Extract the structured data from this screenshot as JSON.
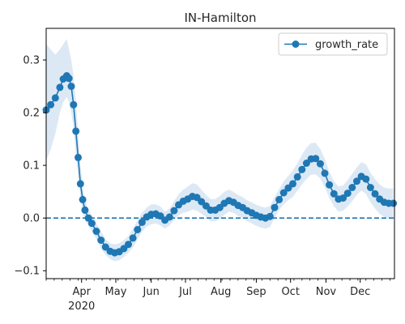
{
  "chart_data": {
    "type": "line",
    "title": "IN-Hamilton",
    "xlabel": "",
    "ylabel": "",
    "x_range": [
      "2020-03-01",
      "2020-12-31"
    ],
    "ylim": [
      -0.115,
      0.36
    ],
    "y_ticks": [
      -0.1,
      0.0,
      0.1,
      0.2,
      0.3
    ],
    "y_tick_labels": [
      "−0.1",
      "0.0",
      "0.1",
      "0.2",
      "0.3"
    ],
    "x_ticks": [
      {
        "date": "2020-04-01",
        "label": "Apr",
        "sublabel": "2020"
      },
      {
        "date": "2020-05-01",
        "label": "May"
      },
      {
        "date": "2020-06-01",
        "label": "Jun"
      },
      {
        "date": "2020-07-01",
        "label": "Jul"
      },
      {
        "date": "2020-08-01",
        "label": "Aug"
      },
      {
        "date": "2020-09-01",
        "label": "Sep"
      },
      {
        "date": "2020-10-01",
        "label": "Oct"
      },
      {
        "date": "2020-11-01",
        "label": "Nov"
      },
      {
        "date": "2020-12-01",
        "label": "Dec"
      }
    ],
    "reference_line": {
      "y": 0.0,
      "style": "dashed",
      "color": "#1f77b4"
    },
    "legend": {
      "position": "top-right",
      "entries": [
        "growth_rate"
      ]
    },
    "grid": false,
    "series": [
      {
        "name": "growth_rate",
        "color": "#1f77b4",
        "band_color": "#dce9f5",
        "points": [
          [
            "2020-03-01",
            0.205,
            0.11,
            0.33
          ],
          [
            "2020-03-05",
            0.215,
            0.13,
            0.32
          ],
          [
            "2020-03-09",
            0.228,
            0.16,
            0.31
          ],
          [
            "2020-03-13",
            0.248,
            0.2,
            0.32
          ],
          [
            "2020-03-16",
            0.264,
            0.22,
            0.33
          ],
          [
            "2020-03-19",
            0.27,
            0.23,
            0.34
          ],
          [
            "2020-03-21",
            0.265,
            0.22,
            0.32
          ],
          [
            "2020-03-23",
            0.25,
            0.2,
            0.3
          ],
          [
            "2020-03-25",
            0.215,
            0.17,
            0.27
          ],
          [
            "2020-03-27",
            0.165,
            0.12,
            0.22
          ],
          [
            "2020-03-29",
            0.115,
            0.08,
            0.16
          ],
          [
            "2020-03-31",
            0.065,
            0.04,
            0.1
          ],
          [
            "2020-04-02",
            0.035,
            0.01,
            0.06
          ],
          [
            "2020-04-04",
            0.015,
            -0.005,
            0.035
          ],
          [
            "2020-04-07",
            0.0,
            -0.015,
            0.015
          ],
          [
            "2020-04-10",
            -0.01,
            -0.025,
            0.005
          ],
          [
            "2020-04-14",
            -0.025,
            -0.04,
            -0.01
          ],
          [
            "2020-04-18",
            -0.042,
            -0.058,
            -0.026
          ],
          [
            "2020-04-22",
            -0.055,
            -0.07,
            -0.04
          ],
          [
            "2020-04-26",
            -0.063,
            -0.078,
            -0.048
          ],
          [
            "2020-04-30",
            -0.066,
            -0.082,
            -0.05
          ],
          [
            "2020-05-04",
            -0.064,
            -0.08,
            -0.048
          ],
          [
            "2020-05-08",
            -0.058,
            -0.074,
            -0.042
          ],
          [
            "2020-05-12",
            -0.05,
            -0.066,
            -0.034
          ],
          [
            "2020-05-16",
            -0.038,
            -0.056,
            -0.02
          ],
          [
            "2020-05-20",
            -0.022,
            -0.04,
            -0.004
          ],
          [
            "2020-05-24",
            -0.008,
            -0.026,
            0.01
          ],
          [
            "2020-05-28",
            0.002,
            -0.016,
            0.02
          ],
          [
            "2020-06-01",
            0.007,
            -0.012,
            0.026
          ],
          [
            "2020-06-05",
            0.008,
            -0.01,
            0.026
          ],
          [
            "2020-06-09",
            0.004,
            -0.014,
            0.022
          ],
          [
            "2020-06-13",
            -0.004,
            -0.02,
            0.012
          ],
          [
            "2020-06-17",
            0.002,
            -0.014,
            0.018
          ],
          [
            "2020-06-21",
            0.014,
            -0.004,
            0.032
          ],
          [
            "2020-06-25",
            0.025,
            0.005,
            0.045
          ],
          [
            "2020-06-29",
            0.032,
            0.01,
            0.054
          ],
          [
            "2020-07-03",
            0.036,
            0.012,
            0.06
          ],
          [
            "2020-07-07",
            0.041,
            0.016,
            0.066
          ],
          [
            "2020-07-11",
            0.039,
            0.014,
            0.064
          ],
          [
            "2020-07-15",
            0.031,
            0.008,
            0.054
          ],
          [
            "2020-07-19",
            0.023,
            0.002,
            0.044
          ],
          [
            "2020-07-23",
            0.015,
            -0.006,
            0.036
          ],
          [
            "2020-07-27",
            0.015,
            -0.006,
            0.036
          ],
          [
            "2020-07-31",
            0.02,
            -0.002,
            0.042
          ],
          [
            "2020-08-04",
            0.028,
            0.006,
            0.05
          ],
          [
            "2020-08-08",
            0.033,
            0.012,
            0.054
          ],
          [
            "2020-08-12",
            0.03,
            0.01,
            0.05
          ],
          [
            "2020-08-16",
            0.024,
            0.004,
            0.044
          ],
          [
            "2020-08-20",
            0.02,
            0.0,
            0.04
          ],
          [
            "2020-08-24",
            0.014,
            -0.006,
            0.034
          ],
          [
            "2020-08-28",
            0.01,
            -0.01,
            0.03
          ],
          [
            "2020-09-01",
            0.005,
            -0.015,
            0.025
          ],
          [
            "2020-09-05",
            0.002,
            -0.018,
            0.022
          ],
          [
            "2020-09-09",
            0.0,
            -0.02,
            0.02
          ],
          [
            "2020-09-13",
            0.003,
            -0.017,
            0.023
          ],
          [
            "2020-09-17",
            0.02,
            0.0,
            0.04
          ],
          [
            "2020-09-21",
            0.035,
            0.015,
            0.055
          ],
          [
            "2020-09-25",
            0.048,
            0.026,
            0.07
          ],
          [
            "2020-09-29",
            0.057,
            0.034,
            0.08
          ],
          [
            "2020-10-03",
            0.065,
            0.04,
            0.09
          ],
          [
            "2020-10-07",
            0.078,
            0.052,
            0.104
          ],
          [
            "2020-10-11",
            0.092,
            0.064,
            0.12
          ],
          [
            "2020-10-15",
            0.104,
            0.074,
            0.134
          ],
          [
            "2020-10-19",
            0.112,
            0.082,
            0.142
          ],
          [
            "2020-10-23",
            0.113,
            0.083,
            0.143
          ],
          [
            "2020-10-27",
            0.103,
            0.075,
            0.131
          ],
          [
            "2020-10-31",
            0.085,
            0.058,
            0.112
          ],
          [
            "2020-11-04",
            0.063,
            0.038,
            0.088
          ],
          [
            "2020-11-08",
            0.046,
            0.022,
            0.07
          ],
          [
            "2020-11-12",
            0.036,
            0.012,
            0.06
          ],
          [
            "2020-11-16",
            0.038,
            0.014,
            0.062
          ],
          [
            "2020-11-20",
            0.047,
            0.022,
            0.072
          ],
          [
            "2020-11-24",
            0.058,
            0.032,
            0.084
          ],
          [
            "2020-11-28",
            0.07,
            0.044,
            0.096
          ],
          [
            "2020-12-02",
            0.079,
            0.052,
            0.106
          ],
          [
            "2020-12-06",
            0.074,
            0.046,
            0.102
          ],
          [
            "2020-12-10",
            0.058,
            0.03,
            0.086
          ],
          [
            "2020-12-14",
            0.046,
            0.018,
            0.074
          ],
          [
            "2020-12-18",
            0.036,
            0.008,
            0.064
          ],
          [
            "2020-12-22",
            0.03,
            0.002,
            0.058
          ],
          [
            "2020-12-26",
            0.028,
            0.0,
            0.056
          ],
          [
            "2020-12-30",
            0.028,
            0.0,
            0.056
          ]
        ]
      }
    ]
  }
}
